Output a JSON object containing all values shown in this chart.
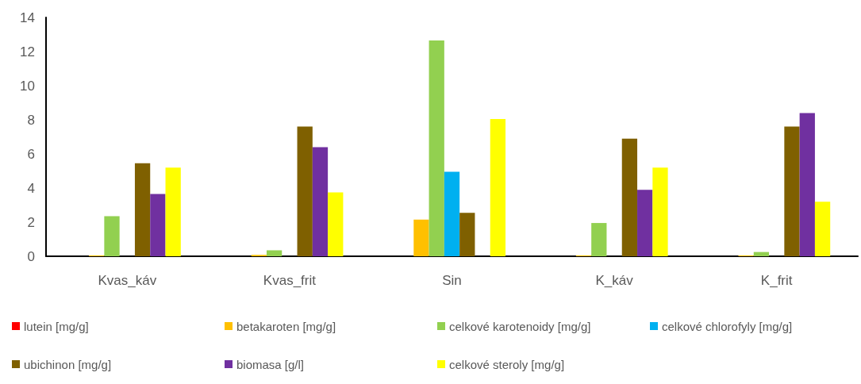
{
  "chart_data": {
    "type": "bar",
    "categories": [
      "Kvas_káv",
      "Kvas_frit",
      "Sin",
      "K_káv",
      "K_frit"
    ],
    "series": [
      {
        "name": "lutein [mg/g]",
        "color": "#ff0000",
        "values": [
          0,
          0,
          0,
          0,
          0
        ]
      },
      {
        "name": "betakaroten [mg/g]",
        "color": "#ffc000",
        "values": [
          0.05,
          0.08,
          2.15,
          0.05,
          0.05
        ]
      },
      {
        "name": "celkové karotenoidy [mg/g]",
        "color": "#92d050",
        "values": [
          2.35,
          0.35,
          12.65,
          1.95,
          0.25
        ]
      },
      {
        "name": "celkové chlorofyly [mg/g]",
        "color": "#00b0f0",
        "values": [
          0,
          0,
          4.95,
          0,
          0
        ]
      },
      {
        "name": "ubichinon [mg/g]",
        "color": "#7f6000",
        "values": [
          5.45,
          7.6,
          2.55,
          6.9,
          7.6
        ]
      },
      {
        "name": "biomasa [g/l]",
        "color": "#7030a0",
        "values": [
          3.65,
          6.4,
          0,
          3.9,
          8.4
        ]
      },
      {
        "name": "celkové steroly [mg/g]",
        "color": "#ffff00",
        "values": [
          5.2,
          3.75,
          8.05,
          5.2,
          3.2
        ]
      }
    ],
    "ylim": [
      0,
      14
    ],
    "yticks": [
      0,
      2,
      4,
      6,
      8,
      10,
      12,
      14
    ],
    "grid": false,
    "legend": "bottom"
  }
}
